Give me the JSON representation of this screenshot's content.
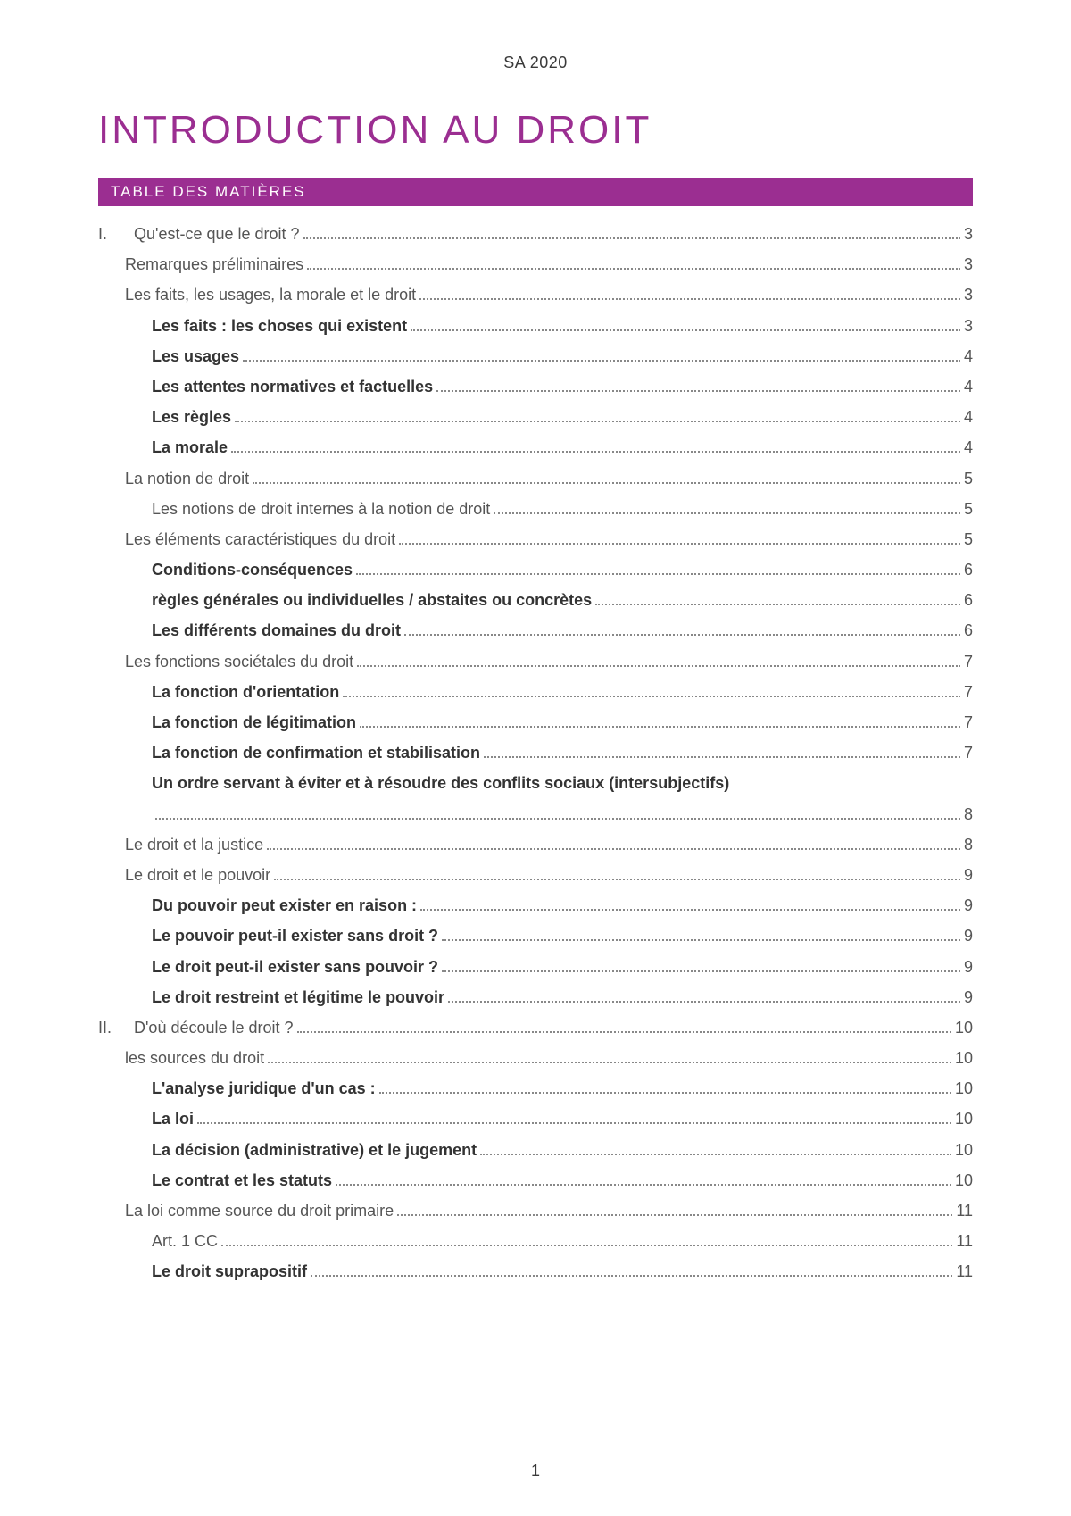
{
  "colors": {
    "accent": "#9b2e91",
    "toc_bg": "#9b2e91",
    "text": "#3a3a3a",
    "dots": "#888888",
    "page_bg": "#ffffff"
  },
  "header": {
    "date": "SA 2020"
  },
  "title": "INTRODUCTION AU DROIT",
  "toc_header": "TABLE DES MATIÈRES",
  "footer_page": "1",
  "toc": [
    {
      "roman": "I.",
      "label": "Qu'est-ce que le droit ?",
      "page": "3",
      "indent": 0,
      "bold": false
    },
    {
      "roman": "",
      "label": "Remarques préliminaires",
      "page": "3",
      "indent": 1,
      "bold": false
    },
    {
      "roman": "",
      "label": "Les faits, les usages, la morale et le droit",
      "page": "3",
      "indent": 1,
      "bold": false
    },
    {
      "roman": "",
      "label": "Les faits : les choses qui existent",
      "page": "3",
      "indent": 2,
      "bold": true,
      "partial_bold": "Les faits :"
    },
    {
      "roman": "",
      "label": "Les usages",
      "page": "4",
      "indent": 2,
      "bold": true
    },
    {
      "roman": "",
      "label": "Les attentes normatives et factuelles",
      "page": "4",
      "indent": 2,
      "bold": true
    },
    {
      "roman": "",
      "label": "Les règles",
      "page": "4",
      "indent": 2,
      "bold": true
    },
    {
      "roman": "",
      "label": "La morale",
      "page": "4",
      "indent": 2,
      "bold": true
    },
    {
      "roman": "",
      "label": "La notion de droit",
      "page": "5",
      "indent": 1,
      "bold": false
    },
    {
      "roman": "",
      "label": "Les notions de droit internes à la notion de droit",
      "page": "5",
      "indent": 2,
      "bold": false
    },
    {
      "roman": "",
      "label": "Les éléments caractéristiques du droit",
      "page": "5",
      "indent": 1,
      "bold": false
    },
    {
      "roman": "",
      "label": "Conditions-conséquences",
      "page": "6",
      "indent": 2,
      "bold": true
    },
    {
      "roman": "",
      "label": "règles générales ou individuelles / abstaites ou concrètes",
      "page": "6",
      "indent": 2,
      "bold": true
    },
    {
      "roman": "",
      "label": "Les différents domaines du droit",
      "page": "6",
      "indent": 2,
      "bold": true
    },
    {
      "roman": "",
      "label": "Les fonctions sociétales du droit",
      "page": "7",
      "indent": 1,
      "bold": false
    },
    {
      "roman": "",
      "label": "La fonction d'orientation",
      "page": "7",
      "indent": 2,
      "bold": true
    },
    {
      "roman": "",
      "label": "La fonction de légitimation",
      "page": "7",
      "indent": 2,
      "bold": true
    },
    {
      "roman": "",
      "label": "La fonction de confirmation et stabilisation",
      "page": "7",
      "indent": 2,
      "bold": true
    },
    {
      "roman": "",
      "label": "Un ordre servant à éviter et à résoudre des conflits sociaux (intersubjectifs)",
      "page": "8",
      "indent": 2,
      "bold": true,
      "wrap": true
    },
    {
      "roman": "",
      "label": "Le droit et la justice",
      "page": "8",
      "indent": 1,
      "bold": false
    },
    {
      "roman": "",
      "label": "Le droit et le pouvoir",
      "page": "9",
      "indent": 1,
      "bold": false
    },
    {
      "roman": "",
      "label": "Du pouvoir peut exister en raison :",
      "page": "9",
      "indent": 2,
      "bold": true
    },
    {
      "roman": "",
      "label": "Le pouvoir peut-il exister sans droit ?",
      "page": "9",
      "indent": 2,
      "bold": true
    },
    {
      "roman": "",
      "label": "Le droit peut-il exister sans pouvoir ?",
      "page": "9",
      "indent": 2,
      "bold": true
    },
    {
      "roman": "",
      "label": "Le droit restreint et légitime le pouvoir",
      "page": "9",
      "indent": 2,
      "bold": true
    },
    {
      "roman": "II.",
      "label": "D'où découle le droit ?",
      "page": "10",
      "indent": 0,
      "bold": false
    },
    {
      "roman": "",
      "label": "les sources du droit",
      "page": "10",
      "indent": 1,
      "bold": false
    },
    {
      "roman": "",
      "label": "L'analyse juridique d'un cas :",
      "page": "10",
      "indent": 2,
      "bold": true
    },
    {
      "roman": "",
      "label": "La loi",
      "page": "10",
      "indent": 2,
      "bold": true
    },
    {
      "roman": "",
      "label": "La décision (administrative) et le jugement",
      "page": "10",
      "indent": 2,
      "bold": true
    },
    {
      "roman": "",
      "label": "Le contrat et les statuts",
      "page": "10",
      "indent": 2,
      "bold": true
    },
    {
      "roman": "",
      "label": "La loi comme source du droit primaire",
      "page": "11",
      "indent": 1,
      "bold": false
    },
    {
      "roman": "",
      "label": "Art. 1 CC",
      "page": "11",
      "indent": 2,
      "bold": false
    },
    {
      "roman": "",
      "label": "Le droit suprapositif",
      "page": "11",
      "indent": 2,
      "bold": true
    }
  ]
}
